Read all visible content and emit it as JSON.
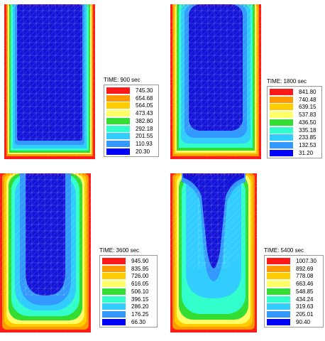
{
  "panels": [
    {
      "time_label": "TIME: 900 sec",
      "stage": 0,
      "legend_values": [
        "745.30",
        "654.68",
        "564.05",
        "473.43",
        "382.80",
        "292.18",
        "201.55",
        "110.93",
        "20.30"
      ]
    },
    {
      "time_label": "TIME: 1800 sec",
      "stage": 1,
      "legend_values": [
        "841.80",
        "740.48",
        "639.15",
        "537.83",
        "436.50",
        "335.18",
        "233.85",
        "132.53",
        "31.20"
      ]
    },
    {
      "time_label": "TIME: 3600 sec",
      "stage": 2,
      "legend_values": [
        "945.90",
        "835.95",
        "726.00",
        "616.05",
        "506.10",
        "396.15",
        "286.20",
        "176.25",
        "66.30"
      ]
    },
    {
      "time_label": "TIME: 5400 sec",
      "stage": 3,
      "legend_values": [
        "1007.30",
        "892.69",
        "778.08",
        "663.46",
        "548.85",
        "434.24",
        "319.63",
        "205.01",
        "90.40"
      ]
    }
  ],
  "legend_colors": [
    "#ff1a1a",
    "#ff9900",
    "#ffcc00",
    "#ffff66",
    "#33dd33",
    "#33ffcc",
    "#33ccff",
    "#3399ff",
    "#0000ff"
  ]
}
